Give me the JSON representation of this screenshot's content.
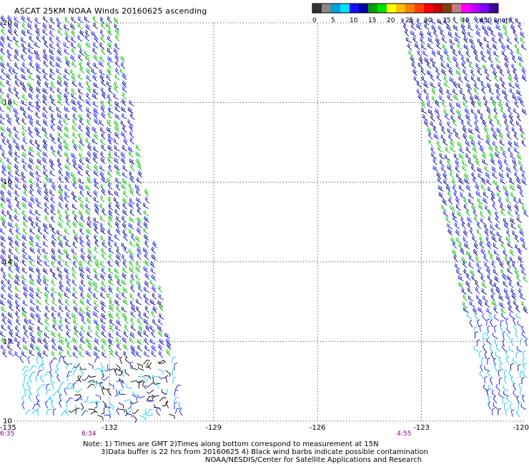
{
  "title": "ASCAT 25KM NOAA Winds 20160625 ascending",
  "color_scale": {
    "unit_label": ">50 knots",
    "segments": [
      {
        "color": "#333333"
      },
      {
        "color": "#888888"
      },
      {
        "color": "#00a0e0"
      },
      {
        "color": "#00e0ff"
      },
      {
        "color": "#1010ff"
      },
      {
        "color": "#0000a0"
      },
      {
        "color": "#00a000"
      },
      {
        "color": "#00e000"
      },
      {
        "color": "#ffff00"
      },
      {
        "color": "#ffc000"
      },
      {
        "color": "#ff8000"
      },
      {
        "color": "#ff4000"
      },
      {
        "color": "#ff0000"
      },
      {
        "color": "#c00000"
      },
      {
        "color": "#804000"
      },
      {
        "color": "#c08080"
      },
      {
        "color": "#ff00ff"
      },
      {
        "color": "#c000ff"
      },
      {
        "color": "#8000ff"
      },
      {
        "color": "#4000a0"
      }
    ],
    "tick_labels": [
      "0",
      "5",
      "10",
      "15",
      "20",
      "25",
      "30",
      "35",
      "40",
      "45"
    ]
  },
  "lat_labels": [
    "20",
    "18",
    "16",
    "14",
    "12",
    "10"
  ],
  "lon_labels": [
    "-135",
    "-132",
    "-129",
    "-126",
    "-123",
    "-120"
  ],
  "pass_times": [
    "6:35",
    "6:34",
    "4:55"
  ],
  "notes": [
    "Note: 1) Times are GMT 2)Times along bottom correspond to measurement at 15N",
    "3)Data buffer is 22 hrs from 20160625 4) Black wind barbs indicate possible contamination",
    "NOAA/NESDIS/Center for Satellite Applications and Research"
  ],
  "barb_colors": {
    "dark_blue": "#0000a0",
    "blue": "#1010ff",
    "green": "#00c000",
    "cyan": "#00c8ff",
    "black": "#000000",
    "time_label": "#800080"
  }
}
